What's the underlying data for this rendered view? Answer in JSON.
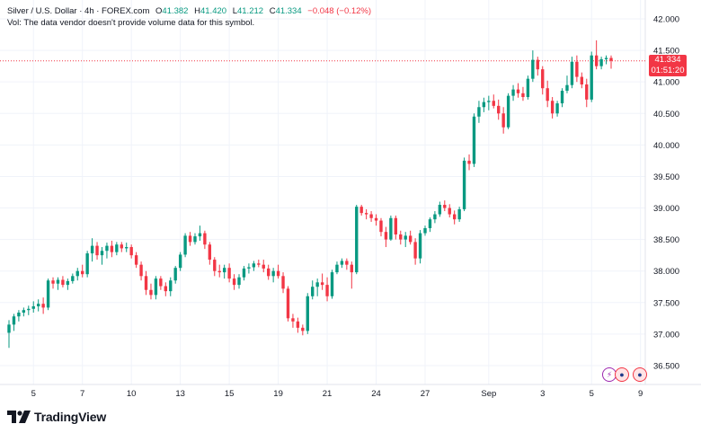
{
  "header": {
    "symbol": "Silver / U.S. Dollar · 4h · FOREX.com",
    "open_label": "O",
    "open": "41.382",
    "high_label": "H",
    "high": "41.420",
    "low_label": "L",
    "low": "41.212",
    "close_label": "C",
    "close": "41.334",
    "change": "−0.048 (−0.12%)",
    "volume_note": "Vol: The data vendor doesn't provide volume data for this symbol."
  },
  "last_price": {
    "value": "41.334",
    "countdown": "01:51:20"
  },
  "logo": {
    "text": "TradingView"
  },
  "colors": {
    "up": "#089981",
    "down": "#f23645",
    "grid": "#f0f3fa",
    "axis_text": "#131722",
    "price_line": "#f23645"
  },
  "chart_data": {
    "type": "candlestick",
    "title": "Silver / U.S. Dollar · 4h · FOREX.com",
    "xlabel": "",
    "ylabel": "",
    "ylim": [
      36.2,
      42.1
    ],
    "y_ticks": [
      "42.000",
      "41.500",
      "41.000",
      "40.500",
      "40.000",
      "39.500",
      "39.000",
      "38.500",
      "38.000",
      "37.500",
      "37.000",
      "36.500"
    ],
    "x_ticks": [
      {
        "label": "5",
        "index": 5
      },
      {
        "label": "7",
        "index": 15
      },
      {
        "label": "10",
        "index": 25
      },
      {
        "label": "13",
        "index": 35
      },
      {
        "label": "15",
        "index": 45
      },
      {
        "label": "19",
        "index": 55
      },
      {
        "label": "21",
        "index": 65
      },
      {
        "label": "24",
        "index": 75
      },
      {
        "label": "27",
        "index": 85
      },
      {
        "label": "Sep",
        "index": 98
      },
      {
        "label": "3",
        "index": 109
      },
      {
        "label": "5",
        "index": 119
      },
      {
        "label": "9",
        "index": 129
      }
    ],
    "grid": true,
    "last_price": 41.334,
    "candles": [
      {
        "o": 37.02,
        "h": 37.22,
        "l": 36.78,
        "c": 37.15
      },
      {
        "o": 37.15,
        "h": 37.32,
        "l": 37.05,
        "c": 37.28
      },
      {
        "o": 37.28,
        "h": 37.38,
        "l": 37.2,
        "c": 37.34
      },
      {
        "o": 37.34,
        "h": 37.42,
        "l": 37.28,
        "c": 37.38
      },
      {
        "o": 37.38,
        "h": 37.45,
        "l": 37.3,
        "c": 37.4
      },
      {
        "o": 37.4,
        "h": 37.52,
        "l": 37.34,
        "c": 37.44
      },
      {
        "o": 37.44,
        "h": 37.55,
        "l": 37.36,
        "c": 37.48
      },
      {
        "o": 37.48,
        "h": 37.58,
        "l": 37.32,
        "c": 37.42
      },
      {
        "o": 37.42,
        "h": 37.88,
        "l": 37.38,
        "c": 37.85
      },
      {
        "o": 37.85,
        "h": 37.9,
        "l": 37.72,
        "c": 37.8
      },
      {
        "o": 37.8,
        "h": 37.9,
        "l": 37.7,
        "c": 37.86
      },
      {
        "o": 37.86,
        "h": 37.92,
        "l": 37.74,
        "c": 37.78
      },
      {
        "o": 37.78,
        "h": 37.88,
        "l": 37.7,
        "c": 37.84
      },
      {
        "o": 37.84,
        "h": 37.96,
        "l": 37.8,
        "c": 37.92
      },
      {
        "o": 37.92,
        "h": 38.05,
        "l": 37.85,
        "c": 38.0
      },
      {
        "o": 38.0,
        "h": 38.1,
        "l": 37.9,
        "c": 37.95
      },
      {
        "o": 37.95,
        "h": 38.32,
        "l": 37.9,
        "c": 38.28
      },
      {
        "o": 38.28,
        "h": 38.52,
        "l": 38.15,
        "c": 38.4
      },
      {
        "o": 38.4,
        "h": 38.46,
        "l": 38.18,
        "c": 38.25
      },
      {
        "o": 38.25,
        "h": 38.38,
        "l": 38.1,
        "c": 38.32
      },
      {
        "o": 38.32,
        "h": 38.45,
        "l": 38.2,
        "c": 38.4
      },
      {
        "o": 38.4,
        "h": 38.48,
        "l": 38.22,
        "c": 38.3
      },
      {
        "o": 38.3,
        "h": 38.46,
        "l": 38.25,
        "c": 38.42
      },
      {
        "o": 38.42,
        "h": 38.46,
        "l": 38.3,
        "c": 38.36
      },
      {
        "o": 38.36,
        "h": 38.45,
        "l": 38.3,
        "c": 38.38
      },
      {
        "o": 38.38,
        "h": 38.42,
        "l": 38.2,
        "c": 38.25
      },
      {
        "o": 38.25,
        "h": 38.3,
        "l": 38.05,
        "c": 38.1
      },
      {
        "o": 38.1,
        "h": 38.15,
        "l": 37.85,
        "c": 37.92
      },
      {
        "o": 37.92,
        "h": 38.0,
        "l": 37.62,
        "c": 37.7
      },
      {
        "o": 37.7,
        "h": 37.8,
        "l": 37.55,
        "c": 37.62
      },
      {
        "o": 37.62,
        "h": 37.92,
        "l": 37.55,
        "c": 37.88
      },
      {
        "o": 37.88,
        "h": 37.92,
        "l": 37.7,
        "c": 37.76
      },
      {
        "o": 37.76,
        "h": 37.82,
        "l": 37.6,
        "c": 37.68
      },
      {
        "o": 37.68,
        "h": 37.9,
        "l": 37.6,
        "c": 37.85
      },
      {
        "o": 37.85,
        "h": 38.08,
        "l": 37.8,
        "c": 38.05
      },
      {
        "o": 38.05,
        "h": 38.3,
        "l": 38.0,
        "c": 38.26
      },
      {
        "o": 38.26,
        "h": 38.6,
        "l": 38.22,
        "c": 38.56
      },
      {
        "o": 38.56,
        "h": 38.62,
        "l": 38.4,
        "c": 38.46
      },
      {
        "o": 38.46,
        "h": 38.6,
        "l": 38.42,
        "c": 38.55
      },
      {
        "o": 38.55,
        "h": 38.72,
        "l": 38.48,
        "c": 38.6
      },
      {
        "o": 38.6,
        "h": 38.64,
        "l": 38.35,
        "c": 38.42
      },
      {
        "o": 38.42,
        "h": 38.46,
        "l": 38.1,
        "c": 38.18
      },
      {
        "o": 38.18,
        "h": 38.22,
        "l": 37.92,
        "c": 38.0
      },
      {
        "o": 38.0,
        "h": 38.1,
        "l": 37.9,
        "c": 37.98
      },
      {
        "o": 37.98,
        "h": 38.1,
        "l": 37.88,
        "c": 38.05
      },
      {
        "o": 38.05,
        "h": 38.12,
        "l": 37.82,
        "c": 37.88
      },
      {
        "o": 37.88,
        "h": 37.95,
        "l": 37.7,
        "c": 37.78
      },
      {
        "o": 37.78,
        "h": 37.95,
        "l": 37.72,
        "c": 37.9
      },
      {
        "o": 37.9,
        "h": 38.08,
        "l": 37.85,
        "c": 38.04
      },
      {
        "o": 38.04,
        "h": 38.12,
        "l": 37.96,
        "c": 38.06
      },
      {
        "o": 38.06,
        "h": 38.16,
        "l": 38.0,
        "c": 38.12
      },
      {
        "o": 38.12,
        "h": 38.18,
        "l": 38.06,
        "c": 38.1
      },
      {
        "o": 38.1,
        "h": 38.18,
        "l": 37.98,
        "c": 38.04
      },
      {
        "o": 38.04,
        "h": 38.1,
        "l": 37.86,
        "c": 37.92
      },
      {
        "o": 37.92,
        "h": 38.05,
        "l": 37.82,
        "c": 38.0
      },
      {
        "o": 38.0,
        "h": 38.1,
        "l": 37.88,
        "c": 37.92
      },
      {
        "o": 37.92,
        "h": 37.98,
        "l": 37.65,
        "c": 37.72
      },
      {
        "o": 37.72,
        "h": 37.76,
        "l": 37.2,
        "c": 37.25
      },
      {
        "o": 37.25,
        "h": 37.32,
        "l": 37.1,
        "c": 37.2
      },
      {
        "o": 37.2,
        "h": 37.26,
        "l": 37.02,
        "c": 37.1
      },
      {
        "o": 37.1,
        "h": 37.15,
        "l": 36.98,
        "c": 37.05
      },
      {
        "o": 37.05,
        "h": 37.65,
        "l": 37.0,
        "c": 37.6
      },
      {
        "o": 37.6,
        "h": 37.85,
        "l": 37.55,
        "c": 37.75
      },
      {
        "o": 37.75,
        "h": 37.88,
        "l": 37.6,
        "c": 37.82
      },
      {
        "o": 37.82,
        "h": 37.96,
        "l": 37.7,
        "c": 37.78
      },
      {
        "o": 37.78,
        "h": 37.9,
        "l": 37.52,
        "c": 37.6
      },
      {
        "o": 37.6,
        "h": 38.02,
        "l": 37.56,
        "c": 37.98
      },
      {
        "o": 37.98,
        "h": 38.15,
        "l": 37.95,
        "c": 38.1
      },
      {
        "o": 38.1,
        "h": 38.2,
        "l": 38.05,
        "c": 38.16
      },
      {
        "o": 38.16,
        "h": 38.2,
        "l": 38.02,
        "c": 38.1
      },
      {
        "o": 38.1,
        "h": 38.15,
        "l": 37.72,
        "c": 37.98
      },
      {
        "o": 37.98,
        "h": 39.05,
        "l": 37.95,
        "c": 39.02
      },
      {
        "o": 39.02,
        "h": 39.05,
        "l": 38.88,
        "c": 38.92
      },
      {
        "o": 38.92,
        "h": 38.98,
        "l": 38.82,
        "c": 38.9
      },
      {
        "o": 38.9,
        "h": 38.95,
        "l": 38.78,
        "c": 38.84
      },
      {
        "o": 38.84,
        "h": 38.9,
        "l": 38.72,
        "c": 38.8
      },
      {
        "o": 38.8,
        "h": 38.84,
        "l": 38.55,
        "c": 38.62
      },
      {
        "o": 38.62,
        "h": 38.7,
        "l": 38.38,
        "c": 38.5
      },
      {
        "o": 38.5,
        "h": 38.88,
        "l": 38.48,
        "c": 38.84
      },
      {
        "o": 38.84,
        "h": 38.88,
        "l": 38.5,
        "c": 38.58
      },
      {
        "o": 38.58,
        "h": 38.64,
        "l": 38.42,
        "c": 38.5
      },
      {
        "o": 38.5,
        "h": 38.62,
        "l": 38.38,
        "c": 38.56
      },
      {
        "o": 38.56,
        "h": 38.64,
        "l": 38.42,
        "c": 38.46
      },
      {
        "o": 38.46,
        "h": 38.52,
        "l": 38.1,
        "c": 38.2
      },
      {
        "o": 38.2,
        "h": 38.65,
        "l": 38.12,
        "c": 38.6
      },
      {
        "o": 38.6,
        "h": 38.72,
        "l": 38.56,
        "c": 38.68
      },
      {
        "o": 38.68,
        "h": 38.85,
        "l": 38.62,
        "c": 38.82
      },
      {
        "o": 38.82,
        "h": 38.95,
        "l": 38.76,
        "c": 38.9
      },
      {
        "o": 38.9,
        "h": 39.1,
        "l": 38.86,
        "c": 39.05
      },
      {
        "o": 39.05,
        "h": 39.12,
        "l": 38.95,
        "c": 39.0
      },
      {
        "o": 39.0,
        "h": 39.06,
        "l": 38.85,
        "c": 38.9
      },
      {
        "o": 38.9,
        "h": 38.96,
        "l": 38.74,
        "c": 38.82
      },
      {
        "o": 38.82,
        "h": 39.02,
        "l": 38.78,
        "c": 38.98
      },
      {
        "o": 38.98,
        "h": 39.8,
        "l": 38.95,
        "c": 39.75
      },
      {
        "o": 39.75,
        "h": 39.85,
        "l": 39.6,
        "c": 39.7
      },
      {
        "o": 39.7,
        "h": 40.5,
        "l": 39.65,
        "c": 40.45
      },
      {
        "o": 40.45,
        "h": 40.7,
        "l": 40.35,
        "c": 40.6
      },
      {
        "o": 40.6,
        "h": 40.75,
        "l": 40.52,
        "c": 40.68
      },
      {
        "o": 40.68,
        "h": 40.78,
        "l": 40.55,
        "c": 40.7
      },
      {
        "o": 40.7,
        "h": 40.8,
        "l": 40.58,
        "c": 40.62
      },
      {
        "o": 40.62,
        "h": 40.72,
        "l": 40.4,
        "c": 40.5
      },
      {
        "o": 40.5,
        "h": 40.6,
        "l": 40.18,
        "c": 40.28
      },
      {
        "o": 40.28,
        "h": 40.82,
        "l": 40.25,
        "c": 40.78
      },
      {
        "o": 40.78,
        "h": 40.95,
        "l": 40.7,
        "c": 40.88
      },
      {
        "o": 40.88,
        "h": 40.98,
        "l": 40.75,
        "c": 40.82
      },
      {
        "o": 40.82,
        "h": 40.92,
        "l": 40.7,
        "c": 40.76
      },
      {
        "o": 40.76,
        "h": 41.1,
        "l": 40.72,
        "c": 41.05
      },
      {
        "o": 41.05,
        "h": 41.5,
        "l": 41.0,
        "c": 41.35
      },
      {
        "o": 41.35,
        "h": 41.4,
        "l": 41.1,
        "c": 41.2
      },
      {
        "o": 41.2,
        "h": 41.25,
        "l": 40.8,
        "c": 40.9
      },
      {
        "o": 40.9,
        "h": 41.02,
        "l": 40.6,
        "c": 40.7
      },
      {
        "o": 40.7,
        "h": 40.76,
        "l": 40.42,
        "c": 40.5
      },
      {
        "o": 40.5,
        "h": 40.7,
        "l": 40.45,
        "c": 40.66
      },
      {
        "o": 40.66,
        "h": 40.9,
        "l": 40.6,
        "c": 40.86
      },
      {
        "o": 40.86,
        "h": 41.1,
        "l": 40.82,
        "c": 40.95
      },
      {
        "o": 40.95,
        "h": 41.4,
        "l": 40.9,
        "c": 41.32
      },
      {
        "o": 41.32,
        "h": 41.42,
        "l": 41.0,
        "c": 41.08
      },
      {
        "o": 41.08,
        "h": 41.15,
        "l": 40.9,
        "c": 40.96
      },
      {
        "o": 40.96,
        "h": 41.05,
        "l": 40.6,
        "c": 40.72
      },
      {
        "o": 40.72,
        "h": 41.48,
        "l": 40.68,
        "c": 41.42
      },
      {
        "o": 41.42,
        "h": 41.66,
        "l": 41.2,
        "c": 41.25
      },
      {
        "o": 41.25,
        "h": 41.4,
        "l": 41.2,
        "c": 41.36
      },
      {
        "o": 41.36,
        "h": 41.42,
        "l": 41.28,
        "c": 41.38
      },
      {
        "o": 41.38,
        "h": 41.42,
        "l": 41.21,
        "c": 41.334
      }
    ]
  }
}
